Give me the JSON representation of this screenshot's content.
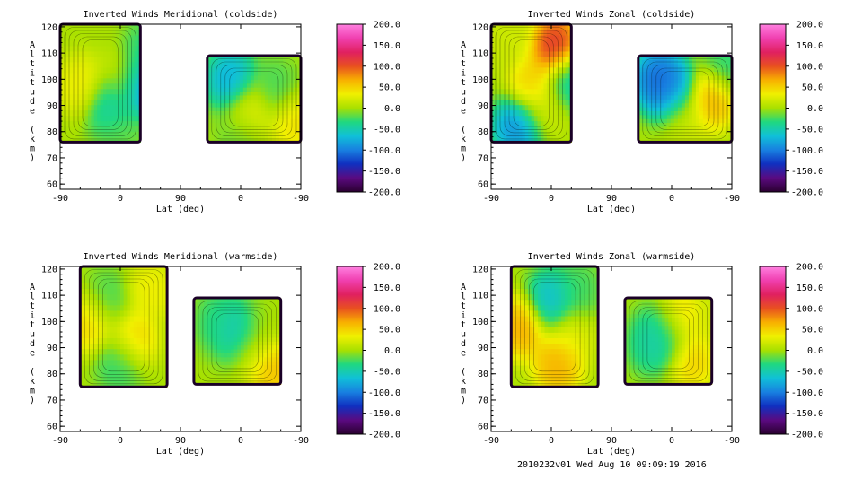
{
  "footer": {
    "stamp": "2010232v01 Wed Aug 10 09:09:19 2016"
  },
  "colors": {
    "colorbar_stops": [
      "#2a0030",
      "#5a0a80",
      "#1030c0",
      "#1880e0",
      "#10c0d8",
      "#20d880",
      "#a8e000",
      "#f0f000",
      "#f8b000",
      "#e85020",
      "#e02060",
      "#f040b0",
      "#ff80e0"
    ]
  },
  "chart_data": [
    {
      "type": "heatmap",
      "title": "Inverted Winds Meridional (coldside)",
      "xlabel": "Lat (deg)",
      "ylabel": "Altitude (km)",
      "x_ticks": [
        "-90",
        "0",
        "90",
        "0",
        "-90"
      ],
      "y_ticks": [
        "60",
        "70",
        "80",
        "90",
        "100",
        "110",
        "120"
      ],
      "ylim": [
        58,
        121
      ],
      "colorbar_ticks": [
        "200.0",
        "150.0",
        "100.0",
        "50.0",
        "0.0",
        "-50.0",
        "-100.0",
        "-150.0",
        "-200.0"
      ],
      "colorbar_range": [
        -200,
        200
      ],
      "regions": [
        {
          "x": [
            -90,
            30
          ],
          "alt": [
            76,
            121
          ],
          "features": [
            {
              "x": -60,
              "alt": 98,
              "value": 40
            },
            {
              "x": -15,
              "alt": 90,
              "value": -60
            },
            {
              "x": 10,
              "alt": 100,
              "value": 35
            },
            {
              "x": 40,
              "alt": 110,
              "value": -40
            },
            {
              "x": 30,
              "alt": 98,
              "value": -140
            },
            {
              "x": 0,
              "alt": 80,
              "value": -20
            }
          ]
        },
        {
          "x": [
            130,
            270
          ],
          "alt": [
            76,
            109
          ],
          "features": [
            {
              "x": 165,
              "alt": 100,
              "value": -90
            },
            {
              "x": 195,
              "alt": 88,
              "value": 40
            },
            {
              "x": 230,
              "alt": 96,
              "value": -30
            },
            {
              "x": 260,
              "alt": 84,
              "value": 50
            },
            {
              "x": 180,
              "alt": 80,
              "value": -20
            }
          ]
        }
      ]
    },
    {
      "type": "heatmap",
      "title": "Inverted Winds Zonal (coldside)",
      "xlabel": "Lat (deg)",
      "ylabel": "Altitude (km)",
      "x_ticks": [
        "-90",
        "0",
        "90",
        "0",
        "-90"
      ],
      "y_ticks": [
        "60",
        "70",
        "80",
        "90",
        "100",
        "110",
        "120"
      ],
      "ylim": [
        58,
        121
      ],
      "colorbar_ticks": [
        "200.0",
        "150.0",
        "100.0",
        "50.0",
        "0.0",
        "-50.0",
        "-100.0",
        "-150.0",
        "-200.0"
      ],
      "colorbar_range": [
        -200,
        200
      ],
      "regions": [
        {
          "x": [
            -90,
            30
          ],
          "alt": [
            76,
            121
          ],
          "features": [
            {
              "x": -30,
              "alt": 98,
              "value": 60
            },
            {
              "x": -50,
              "alt": 82,
              "value": -110
            },
            {
              "x": 5,
              "alt": 112,
              "value": 140
            },
            {
              "x": -10,
              "alt": 88,
              "value": 20
            },
            {
              "x": 25,
              "alt": 100,
              "value": -60
            },
            {
              "x": -60,
              "alt": 115,
              "value": 20
            }
          ]
        },
        {
          "x": [
            130,
            270
          ],
          "alt": [
            76,
            109
          ],
          "features": [
            {
              "x": 160,
              "alt": 100,
              "value": -130
            },
            {
              "x": 240,
              "alt": 93,
              "value": 80
            },
            {
              "x": 200,
              "alt": 86,
              "value": 20
            },
            {
              "x": 180,
              "alt": 96,
              "value": -110
            },
            {
              "x": 260,
              "alt": 105,
              "value": -40
            }
          ]
        }
      ]
    },
    {
      "type": "heatmap",
      "title": "Inverted Winds Meridional (warmside)",
      "xlabel": "Lat (deg)",
      "ylabel": "Altitude (km)",
      "x_ticks": [
        "-90",
        "0",
        "90",
        "0",
        "-90"
      ],
      "y_ticks": [
        "60",
        "70",
        "80",
        "90",
        "100",
        "110",
        "120"
      ],
      "ylim": [
        58,
        121
      ],
      "colorbar_ticks": [
        "200.0",
        "150.0",
        "100.0",
        "50.0",
        "0.0",
        "-50.0",
        "-100.0",
        "-150.0",
        "-200.0"
      ],
      "colorbar_range": [
        -200,
        200
      ],
      "regions": [
        {
          "x": [
            -60,
            70
          ],
          "alt": [
            75,
            121
          ],
          "features": [
            {
              "x": -45,
              "alt": 100,
              "value": 60
            },
            {
              "x": 20,
              "alt": 93,
              "value": 60
            },
            {
              "x": -20,
              "alt": 108,
              "value": -30
            },
            {
              "x": 45,
              "alt": 112,
              "value": 40
            },
            {
              "x": 0,
              "alt": 85,
              "value": -40
            }
          ]
        },
        {
          "x": [
            110,
            240
          ],
          "alt": [
            76,
            109
          ],
          "features": [
            {
              "x": 200,
              "alt": 90,
              "value": 30
            },
            {
              "x": 230,
              "alt": 82,
              "value": 70
            },
            {
              "x": 150,
              "alt": 100,
              "value": -40
            },
            {
              "x": 180,
              "alt": 96,
              "value": -80
            },
            {
              "x": 215,
              "alt": 100,
              "value": 0
            }
          ]
        }
      ]
    },
    {
      "type": "heatmap",
      "title": "Inverted Winds Zonal (warmside)",
      "xlabel": "Lat (deg)",
      "ylabel": "Altitude (km)",
      "x_ticks": [
        "-90",
        "0",
        "90",
        "0",
        "-90"
      ],
      "y_ticks": [
        "60",
        "70",
        "80",
        "90",
        "100",
        "110",
        "120"
      ],
      "ylim": [
        58,
        121
      ],
      "colorbar_ticks": [
        "200.0",
        "150.0",
        "100.0",
        "50.0",
        "0.0",
        "-50.0",
        "-100.0",
        "-150.0",
        "-200.0"
      ],
      "colorbar_range": [
        -200,
        200
      ],
      "regions": [
        {
          "x": [
            -60,
            70
          ],
          "alt": [
            75,
            121
          ],
          "features": [
            {
              "x": -45,
              "alt": 98,
              "value": 80
            },
            {
              "x": 10,
              "alt": 84,
              "value": 80
            },
            {
              "x": 0,
              "alt": 108,
              "value": -80
            },
            {
              "x": 40,
              "alt": 112,
              "value": -30
            },
            {
              "x": 30,
              "alt": 95,
              "value": 30
            }
          ]
        },
        {
          "x": [
            110,
            240
          ],
          "alt": [
            76,
            109
          ],
          "features": [
            {
              "x": 190,
              "alt": 100,
              "value": 80
            },
            {
              "x": 210,
              "alt": 86,
              "value": 60
            },
            {
              "x": 150,
              "alt": 92,
              "value": -50
            },
            {
              "x": 175,
              "alt": 96,
              "value": -80
            },
            {
              "x": 235,
              "alt": 100,
              "value": 20
            }
          ]
        }
      ]
    }
  ]
}
